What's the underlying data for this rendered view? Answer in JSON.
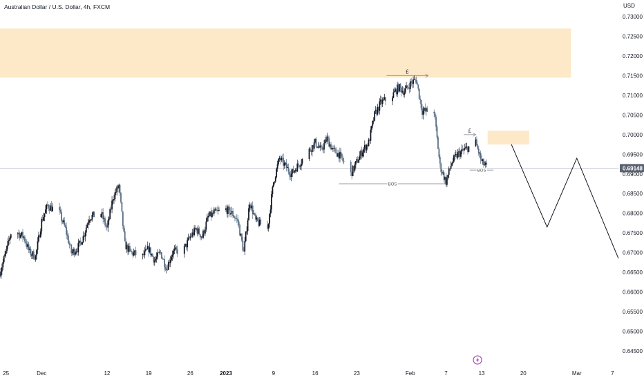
{
  "header": {
    "title": "Australian Dollar / U.S. Dollar, 4h, FXCM",
    "price_unit": "USD"
  },
  "colors": {
    "up_candle": "#131722",
    "down_candle": "#5b6f86",
    "supply_zone": "#fde7c4",
    "current_price_tag": "#5a6170",
    "projection_line": "#131722",
    "annotation_line": "#787b86",
    "event_icon": "#9c27b0"
  },
  "event_icon": "lightning-icon",
  "chart_data": {
    "type": "candlestick",
    "title": "Australian Dollar / U.S. Dollar, 4h, FXCM",
    "y_unit": "USD",
    "ylim": [
      0.6425,
      0.7325
    ],
    "y_ticks": [
      "0.73000",
      "0.72500",
      "0.72000",
      "0.71500",
      "0.71000",
      "0.70500",
      "0.70000",
      "0.69500",
      "0.69000",
      "0.68500",
      "0.68000",
      "0.67500",
      "0.67000",
      "0.66500",
      "0.66000",
      "0.65500",
      "0.65000",
      "0.64500"
    ],
    "y_tick_values": [
      0.73,
      0.725,
      0.72,
      0.715,
      0.71,
      0.705,
      0.7,
      0.695,
      0.69,
      0.685,
      0.68,
      0.675,
      0.67,
      0.665,
      0.66,
      0.655,
      0.65,
      0.645
    ],
    "x_range": [
      "2022-11-24",
      "2023-03-08"
    ],
    "x_ticks": [
      {
        "label": "25",
        "date": "2022-11-25"
      },
      {
        "label": "Dec",
        "date": "2022-12-01"
      },
      {
        "label": "12",
        "date": "2022-12-12"
      },
      {
        "label": "19",
        "date": "2022-12-19"
      },
      {
        "label": "26",
        "date": "2022-12-26"
      },
      {
        "label": "2023",
        "date": "2023-01-01",
        "bold": true
      },
      {
        "label": "9",
        "date": "2023-01-09"
      },
      {
        "label": "16",
        "date": "2023-01-16"
      },
      {
        "label": "23",
        "date": "2023-01-23"
      },
      {
        "label": "Feb",
        "date": "2023-02-01"
      },
      {
        "label": "7",
        "date": "2023-02-07"
      },
      {
        "label": "13",
        "date": "2023-02-13"
      },
      {
        "label": "20",
        "date": "2023-02-20"
      },
      {
        "label": "Mar",
        "date": "2023-03-01"
      },
      {
        "label": "7",
        "date": "2023-03-07"
      }
    ],
    "price_path": [
      [
        "2022-11-24",
        0.665
      ],
      [
        "2022-11-25",
        0.67
      ],
      [
        "2022-11-26",
        0.676
      ],
      [
        "2022-11-28",
        0.674
      ],
      [
        "2022-11-29",
        0.67
      ],
      [
        "2022-11-30",
        0.669
      ],
      [
        "2022-12-01",
        0.678
      ],
      [
        "2022-12-02",
        0.682
      ],
      [
        "2022-12-04",
        0.68
      ],
      [
        "2022-12-05",
        0.676
      ],
      [
        "2022-12-06",
        0.67
      ],
      [
        "2022-12-07",
        0.671
      ],
      [
        "2022-12-08",
        0.674
      ],
      [
        "2022-12-09",
        0.679
      ],
      [
        "2022-12-11",
        0.68
      ],
      [
        "2022-12-12",
        0.676
      ],
      [
        "2022-12-13",
        0.684
      ],
      [
        "2022-12-14",
        0.687
      ],
      [
        "2022-12-15",
        0.672
      ],
      [
        "2022-12-16",
        0.67
      ],
      [
        "2022-12-18",
        0.669
      ],
      [
        "2022-12-19",
        0.671
      ],
      [
        "2022-12-20",
        0.668
      ],
      [
        "2022-12-21",
        0.67
      ],
      [
        "2022-12-22",
        0.666
      ],
      [
        "2022-12-23",
        0.67
      ],
      [
        "2022-12-25",
        0.671
      ],
      [
        "2022-12-26",
        0.674
      ],
      [
        "2022-12-27",
        0.676
      ],
      [
        "2022-12-28",
        0.674
      ],
      [
        "2022-12-29",
        0.679
      ],
      [
        "2022-12-30",
        0.68
      ],
      [
        "2023-01-01",
        0.681
      ],
      [
        "2023-01-02",
        0.68
      ],
      [
        "2023-01-03",
        0.678
      ],
      [
        "2023-01-04",
        0.67
      ],
      [
        "2023-01-05",
        0.683
      ],
      [
        "2023-01-06",
        0.678
      ],
      [
        "2023-01-08",
        0.676
      ],
      [
        "2023-01-09",
        0.688
      ],
      [
        "2023-01-10",
        0.694
      ],
      [
        "2023-01-11",
        0.692
      ],
      [
        "2023-01-12",
        0.69
      ],
      [
        "2023-01-13",
        0.692
      ],
      [
        "2023-01-15",
        0.696
      ],
      [
        "2023-01-16",
        0.698
      ],
      [
        "2023-01-17",
        0.696
      ],
      [
        "2023-01-18",
        0.699
      ],
      [
        "2023-01-19",
        0.696
      ],
      [
        "2023-01-20",
        0.695
      ],
      [
        "2023-01-22",
        0.69
      ],
      [
        "2023-01-23",
        0.693
      ],
      [
        "2023-01-24",
        0.696
      ],
      [
        "2023-01-25",
        0.698
      ],
      [
        "2023-01-26",
        0.705
      ],
      [
        "2023-01-27",
        0.708
      ],
      [
        "2023-01-29",
        0.71
      ],
      [
        "2023-01-30",
        0.712
      ],
      [
        "2023-01-31",
        0.711
      ],
      [
        "2023-02-01",
        0.713
      ],
      [
        "2023-02-02",
        0.714
      ],
      [
        "2023-02-03",
        0.706
      ],
      [
        "2023-02-05",
        0.706
      ],
      [
        "2023-02-06",
        0.692
      ],
      [
        "2023-02-07",
        0.688
      ],
      [
        "2023-02-08",
        0.693
      ],
      [
        "2023-02-09",
        0.695
      ],
      [
        "2023-02-10",
        0.696
      ],
      [
        "2023-02-12",
        0.698
      ],
      [
        "2023-02-13",
        0.693
      ],
      [
        "2023-02-14",
        0.6915
      ]
    ],
    "last_price": "0.69148",
    "last_price_value": 0.69148,
    "zones": [
      {
        "x0": "2022-11-24",
        "x1": "2023-02-28",
        "y0": 0.7145,
        "y1": 0.727
      },
      {
        "x0": "2023-02-14",
        "x1": "2023-02-21",
        "y0": 0.6975,
        "y1": 0.701
      }
    ],
    "projection": [
      [
        "2023-02-18",
        0.6975
      ],
      [
        "2023-02-24",
        0.6765
      ],
      [
        "2023-03-01",
        0.694
      ],
      [
        "2023-03-08",
        0.6685
      ]
    ],
    "annotations": [
      {
        "text": "£",
        "x0": "2023-01-28",
        "x1": "2023-02-04",
        "y": 0.715
      },
      {
        "text": "£",
        "x0": "2023-02-10",
        "x1": "2023-02-12",
        "y": 0.7
      },
      {
        "text": "BOS",
        "x0": "2023-01-20",
        "x1": "2023-02-07",
        "y": 0.6875
      },
      {
        "text": "BOS",
        "x0": "2023-02-11",
        "x1": "2023-02-15",
        "y": 0.691
      }
    ]
  }
}
